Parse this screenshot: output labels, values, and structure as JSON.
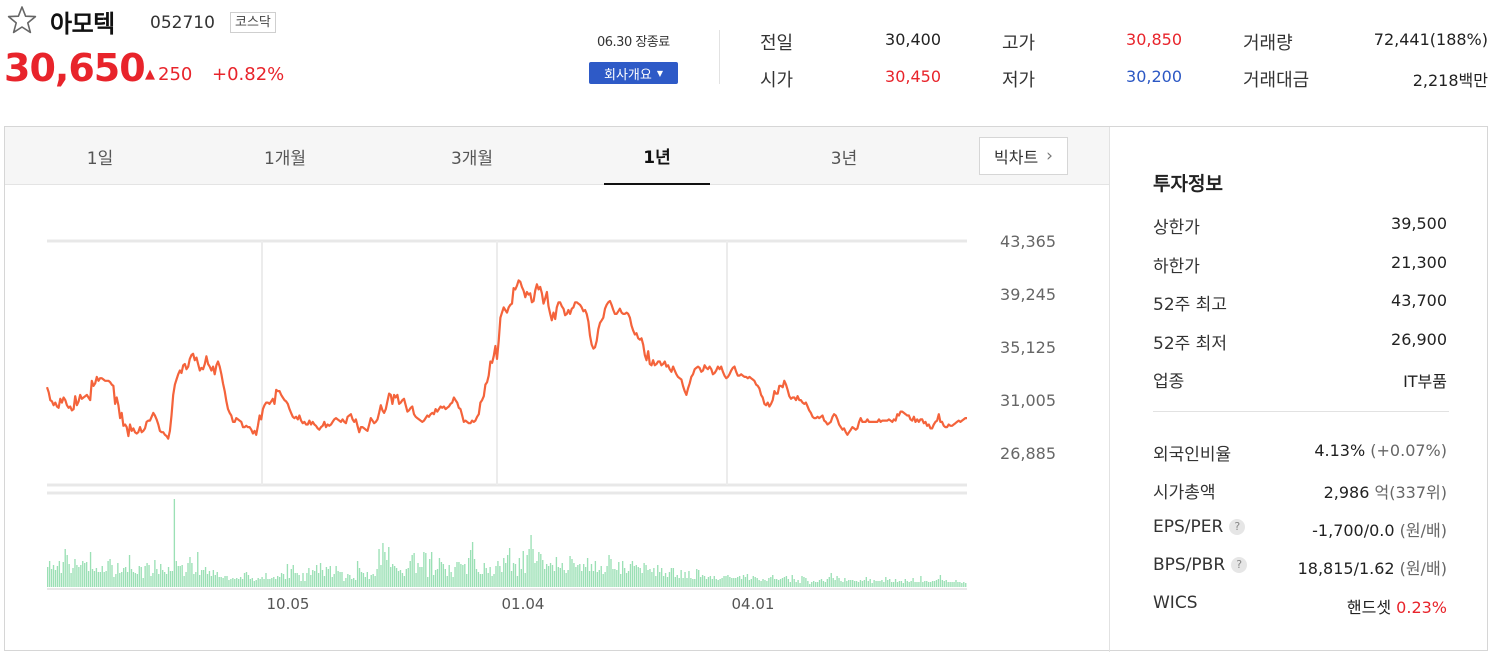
{
  "stock": {
    "name": "아모텍",
    "code": "052710",
    "market": "코스닥",
    "price": "30,650",
    "change": "250",
    "change_rate": "+0.82%"
  },
  "market_status": {
    "close_label": "06.30 장종료",
    "overview_button": "회사개요"
  },
  "summary": {
    "prev_close": {
      "label": "전일",
      "value": "30,400"
    },
    "open": {
      "label": "시가",
      "value": "30,450"
    },
    "high": {
      "label": "고가",
      "value": "30,850"
    },
    "low": {
      "label": "저가",
      "value": "30,200"
    },
    "volume": {
      "label": "거래량",
      "value": "72,441(188%)"
    },
    "trade_value": {
      "label": "거래대금",
      "value": "2,218",
      "unit": "백만"
    }
  },
  "tabs": [
    {
      "label": "1일",
      "active": false
    },
    {
      "label": "1개월",
      "active": false
    },
    {
      "label": "3개월",
      "active": false
    },
    {
      "label": "1년",
      "active": true
    },
    {
      "label": "3년",
      "active": false
    }
  ],
  "big_chart": {
    "label": "빅차트"
  },
  "invest_info": {
    "title": "투자정보",
    "upper_limit": {
      "label": "상한가",
      "value": "39,500"
    },
    "lower_limit": {
      "label": "하한가",
      "value": "21,300"
    },
    "high_52w": {
      "label": "52주 최고",
      "value": "43,700"
    },
    "low_52w": {
      "label": "52주 최저",
      "value": "26,900"
    },
    "industry": {
      "label": "업종",
      "value": "IT부품"
    },
    "foreign_ratio": {
      "label": "외국인비율",
      "value": "4.13%",
      "change": "(+0.07%)"
    },
    "market_cap": {
      "label": "시가총액",
      "value": "2,986",
      "unit": "억",
      "rank": "(337위)"
    },
    "eps_per": {
      "label": "EPS/PER",
      "value": "-1,700/0.0",
      "unit": "(원/배)"
    },
    "bps_pbr": {
      "label": "BPS/PBR",
      "value": "18,815/1.62",
      "unit": "(원/배)"
    },
    "wics": {
      "label": "WICS",
      "value": "핸드셋",
      "rate": "0.23%"
    }
  },
  "colors": {
    "up": "#e8242b",
    "down": "#2c58c4",
    "price_line": "#f4633b",
    "volume_bar": "#9be0b5",
    "brand_button": "#2e5ac7"
  },
  "chart_data": {
    "type": "line",
    "y_ticks": [
      "43,365",
      "39,245",
      "35,125",
      "31,005",
      "26,885"
    ],
    "x_ticks": [
      "10.05",
      "01.04",
      "04.01"
    ],
    "ylim": [
      26885,
      43365
    ],
    "price": [
      32000,
      31600,
      31000,
      30900,
      30600,
      30800,
      30500,
      30400,
      31100,
      30800,
      31200,
      31000,
      30600,
      30400,
      30500,
      30200,
      30300,
      31300,
      30600,
      30900,
      31400,
      31100,
      31200,
      31300,
      31400,
      31200,
      31000,
      32500,
      32100,
      32300,
      32800,
      32500,
      32700,
      32700,
      32600,
      32500,
      32500,
      32500,
      32400,
      32200,
      32100,
      30700,
      31200,
      30600,
      29600,
      30000,
      29000,
      29100,
      28900,
      28200,
      29100,
      28600,
      28800,
      28500,
      28400,
      28500,
      28900,
      28500,
      28600,
      28800,
      29300,
      29400,
      29400,
      29700,
      30000,
      29800,
      29500,
      29100,
      28600,
      28500,
      28500,
      28300,
      28200,
      28000,
      28600,
      29800,
      31400,
      32200,
      32600,
      33000,
      33300,
      33100,
      33700,
      33800,
      33400,
      33600,
      34200,
      34500,
      34600,
      34100,
      34300,
      33800,
      33300,
      33500,
      33400,
      33800,
      34400,
      33800,
      33600,
      33300,
      33600,
      33000,
      33700,
      34000,
      33600,
      33000,
      32300,
      31700,
      30900,
      30300,
      30000,
      29800,
      29300,
      29300,
      29600,
      29500,
      29400,
      29300,
      28900,
      28900,
      29000,
      28900,
      28900,
      28700,
      28400,
      28600,
      28300,
      29000,
      29800,
      29500,
      30300,
      30600,
      30800,
      30800,
      30700,
      30900,
      31100,
      30700,
      31800,
      31700,
      31700,
      31400,
      31200,
      31000,
      30900,
      30700,
      30300,
      30000,
      29700,
      29600,
      29700,
      29500,
      29800,
      29400,
      29200,
      29300,
      29100,
      29100,
      29400,
      29100,
      29300,
      29100,
      29000,
      28800,
      28700,
      28900,
      29000,
      29300,
      28900,
      29100,
      29000,
      29100,
      29300,
      29500,
      29600,
      29500,
      29400,
      29300,
      29500,
      29300,
      29200,
      29700,
      29800,
      29900,
      29500,
      29300,
      29500,
      29000,
      28500,
      28900,
      28900,
      28800,
      28700,
      28600,
      29100,
      29600,
      29400,
      29200,
      29300,
      29500,
      30000,
      30600,
      30200,
      30000,
      30300,
      30900,
      31500,
      31400,
      30700,
      31400,
      31200,
      31400,
      30700,
      30800,
      31000,
      31100,
      30600,
      30100,
      30200,
      30400,
      30500,
      29900,
      29700,
      29600,
      29500,
      29400,
      29300,
      29400,
      29600,
      29800,
      29700,
      29900,
      30000,
      29900,
      30300,
      30100,
      30300,
      30500,
      30400,
      30500,
      30300,
      30400,
      30500,
      30700,
      30800,
      31200,
      31000,
      30800,
      30400,
      30300,
      29800,
      29300,
      29400,
      29300,
      29200,
      29200,
      29400,
      29300,
      29400,
      29700,
      29900,
      30800,
      31000,
      31300,
      32200,
      32400,
      32900,
      34000,
      33900,
      34400,
      35200,
      34200,
      35600,
      37400,
      37800,
      38200,
      38000,
      37800,
      38200,
      38400,
      38500,
      39700,
      39600,
      39900,
      40300,
      40200,
      39800,
      39500,
      39000,
      39400,
      39200,
      39300,
      38600,
      38700,
      39500,
      40000,
      39600,
      39800,
      39300,
      38500,
      38900,
      39400,
      38300,
      37700,
      37200,
      37800,
      37300,
      38200,
      38600,
      38600,
      38300,
      38100,
      37600,
      37700,
      38000,
      37700,
      38100,
      38200,
      38600,
      38600,
      38500,
      38400,
      38200,
      37900,
      38000,
      37700,
      37100,
      36000,
      35300,
      35000,
      35100,
      35600,
      36500,
      37000,
      37200,
      37400,
      38100,
      38400,
      38600,
      38700,
      38400,
      38000,
      37700,
      37700,
      37900,
      38100,
      37800,
      37700,
      37700,
      37800,
      37700,
      37400,
      36800,
      36400,
      36100,
      36200,
      35800,
      35700,
      35800,
      35300,
      34500,
      34100,
      34800,
      33800,
      33700,
      34100,
      33700,
      33800,
      34000,
      34000,
      33700,
      33800,
      34000,
      33600,
      33700,
      33400,
      33200,
      33600,
      33300,
      33000,
      32800,
      32700,
      32600,
      32100,
      31700,
      31400,
      31900,
      32300,
      32800,
      33000,
      33400,
      33500,
      33600,
      33500,
      33200,
      33300,
      33700,
      33500,
      33400,
      33600,
      33400,
      33000,
      33100,
      33300,
      33600,
      33400,
      33600,
      33200,
      32900,
      32700,
      32800,
      33000,
      33300,
      33500,
      33600,
      33200,
      32900,
      32900,
      33000,
      32900,
      32800,
      32800,
      32700,
      32800,
      32700,
      32600,
      32500,
      32200,
      32100,
      31900,
      31400,
      31200,
      30700,
      30600,
      30800,
      30500,
      30700,
      31000,
      31700,
      31500,
      31500,
      32100,
      32100,
      32000,
      32500,
      32200,
      31800,
      31300,
      31100,
      31200,
      31200,
      31000,
      31300,
      31000,
      31000,
      30800,
      30700,
      30800,
      30500,
      30200,
      30000,
      29700,
      29600,
      29600,
      29700,
      29600,
      29700,
      29800,
      29400,
      29300,
      29100,
      29200,
      29300,
      29700,
      29900,
      29800,
      29500,
      29100,
      28900,
      28700,
      28800,
      28500,
      28300,
      28500,
      28700,
      28900,
      28800,
      28700,
      28800,
      29300,
      29600,
      29300,
      29300,
      29300,
      29500,
      29300,
      29300,
      29300,
      29300,
      29300,
      29300,
      29500,
      29300,
      29400,
      29400,
      29400,
      29400,
      29500,
      29400,
      29300,
      29500,
      29400,
      29900,
      29800,
      30100,
      30100,
      30000,
      29900,
      29800,
      29800,
      29500,
      29400,
      29700,
      29300,
      29500,
      29300,
      29500,
      29500,
      29200,
      29300,
      29000,
      29100,
      28800,
      28800,
      29100,
      29300,
      29400,
      29900,
      29300,
      29300,
      29000,
      28900,
      28900,
      29100,
      29000,
      29000,
      29100,
      29200,
      29300,
      29400,
      29300,
      29400,
      29500,
      29600,
      29600
    ],
    "volume": [
      20,
      26,
      18,
      22,
      17,
      21,
      26,
      14,
      25,
      38,
      32,
      23,
      14,
      19,
      28,
      22,
      20,
      22,
      26,
      24,
      25,
      16,
      35,
      18,
      16,
      19,
      15,
      15,
      21,
      15,
      16,
      26,
      28,
      22,
      10,
      13,
      24,
      14,
      15,
      19,
      20,
      15,
      32,
      18,
      15,
      14,
      13,
      21,
      20,
      9,
      21,
      24,
      22,
      11,
      14,
      27,
      18,
      13,
      23,
      17,
      15,
      13,
      20,
      16,
      16,
      88,
      26,
      21,
      21,
      22,
      11,
      15,
      24,
      30,
      24,
      13,
      15,
      35,
      12,
      17,
      17,
      20,
      13,
      16,
      11,
      17,
      12,
      15,
      10,
      10,
      9,
      11,
      11,
      7,
      8,
      9,
      8,
      9,
      8,
      10,
      8,
      14,
      15,
      12,
      8,
      9,
      6,
      7,
      9,
      8,
      10,
      8,
      14,
      8,
      8,
      9,
      10,
      8,
      11,
      10,
      14,
      13,
      8,
      23,
      9,
      18,
      22,
      14,
      14,
      12,
      6,
      14,
      6,
      14,
      19,
      12,
      17,
      16,
      22,
      14,
      24,
      17,
      11,
      20,
      18,
      21,
      10,
      13,
      21,
      16,
      15,
      15,
      6,
      9,
      13,
      12,
      8,
      9,
      7,
      26,
      19,
      15,
      14,
      10,
      15,
      8,
      12,
      13,
      11,
      18,
      38,
      22,
      44,
      35,
      27,
      40,
      20,
      23,
      21,
      19,
      16,
      17,
      14,
      11,
      18,
      19,
      26,
      32,
      34,
      14,
      24,
      20,
      20,
      35,
      34,
      10,
      28,
      35,
      12,
      17,
      18,
      29,
      25,
      23,
      18,
      11,
      22,
      15,
      10,
      20,
      25,
      25,
      23,
      22,
      23,
      13,
      29,
      37,
      45,
      28,
      18,
      15,
      13,
      13,
      24,
      19,
      14,
      20,
      11,
      13,
      21,
      26,
      21,
      15,
      29,
      24,
      32,
      39,
      16,
      24,
      23,
      11,
      29,
      18,
      36,
      14,
      32,
      38,
      52,
      38,
      24,
      26,
      35,
      33,
      27,
      18,
      23,
      21,
      24,
      22,
      16,
      30,
      20,
      19,
      24,
      17,
      14,
      17,
      31,
      28,
      24,
      20,
      22,
      23,
      16,
      23,
      20,
      29,
      16,
      23,
      16,
      26,
      15,
      17,
      21,
      13,
      15,
      21,
      32,
      28,
      18,
      18,
      17,
      25,
      13,
      26,
      19,
      14,
      16,
      23,
      26,
      21,
      22,
      20,
      19,
      14,
      24,
      22,
      17,
      18,
      15,
      19,
      11,
      22,
      15,
      19,
      11,
      14,
      10,
      15,
      19,
      19,
      10,
      12,
      9,
      17,
      9,
      15,
      9,
      16,
      9,
      8,
      8,
      18,
      17,
      10,
      12,
      11,
      8,
      10,
      11,
      8,
      11,
      8,
      7,
      8,
      9,
      11,
      11,
      12,
      10,
      9,
      9,
      9,
      10,
      11,
      8,
      12,
      10,
      13,
      7,
      8,
      11,
      10,
      9,
      7,
      6,
      8,
      7,
      6,
      9,
      10,
      12,
      8,
      8,
      7,
      8,
      9,
      10,
      11,
      8,
      5,
      12,
      8,
      5,
      7,
      4,
      11,
      10,
      9,
      6,
      3,
      5,
      6,
      5,
      5,
      7,
      8,
      6,
      5,
      8,
      10,
      14,
      9,
      7,
      11,
      9,
      6,
      5,
      9,
      6,
      7,
      7,
      7,
      6,
      6,
      5,
      7,
      6,
      7,
      10,
      6,
      8,
      4,
      7,
      6,
      6,
      6,
      7,
      5,
      10,
      7,
      8,
      5,
      5,
      8,
      5,
      6,
      6,
      4,
      8,
      6,
      5,
      6,
      9,
      5,
      5,
      5,
      11,
      5,
      6,
      6,
      5,
      5,
      6,
      6,
      7,
      8,
      12,
      7,
      6,
      7,
      5,
      5,
      5,
      5,
      7,
      5,
      5,
      4,
      5,
      4
    ]
  }
}
